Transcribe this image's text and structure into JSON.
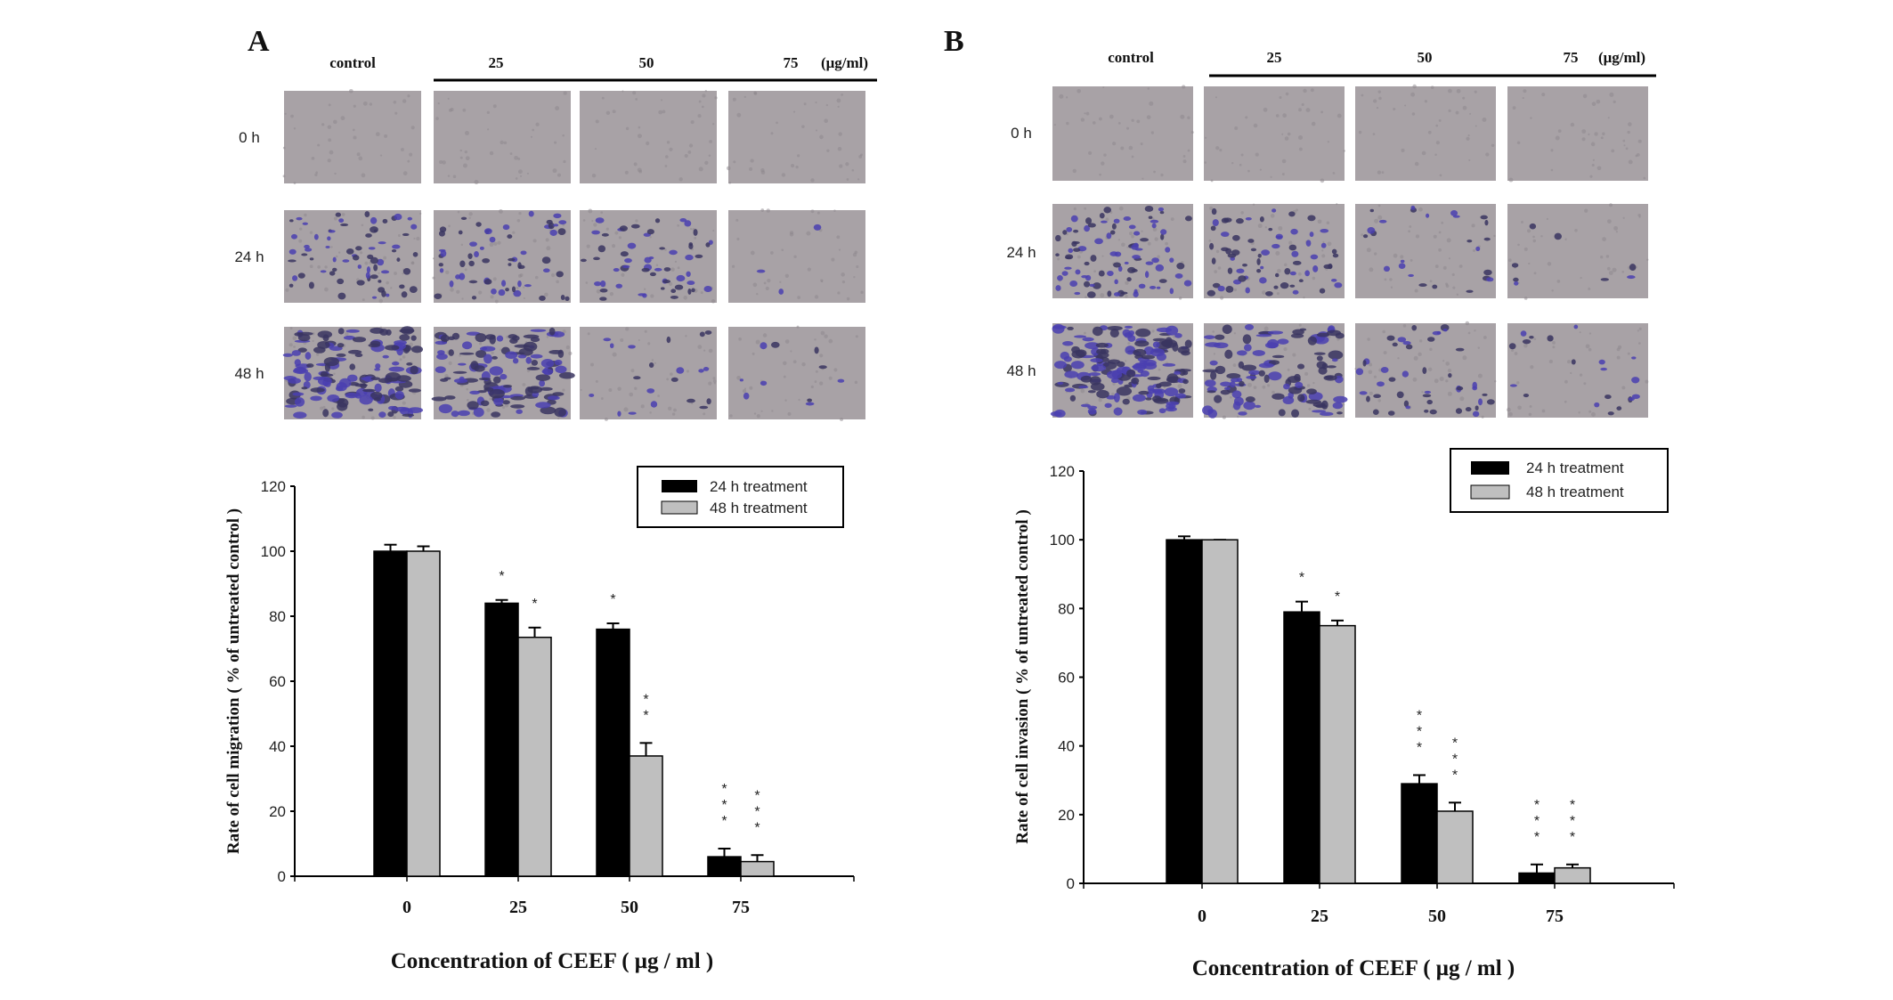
{
  "panels": [
    {
      "letter": "A",
      "columns": [
        "control",
        "25",
        "50",
        "75"
      ],
      "unit": "(μg/ml)",
      "rows": [
        "0  h",
        "24  h",
        "48  h"
      ]
    },
    {
      "letter": "B",
      "columns": [
        "control",
        "25",
        "50",
        "75"
      ],
      "unit": "(μg/ml)",
      "rows": [
        "0  h",
        "24  h",
        "48  h"
      ]
    }
  ],
  "colors": {
    "h24": "#000000",
    "h48": "#bfbfbf",
    "stain": "#4a3fb0",
    "membrane": "#a8a2a6"
  },
  "chart_data": [
    {
      "type": "bar",
      "title": "",
      "xlabel": "Concentration of CEEF ( μg / ml )",
      "ylabel": "Rate of cell migration ( % of untreated control )",
      "categories": [
        "0",
        "25",
        "50",
        "75"
      ],
      "ylim": [
        0,
        120
      ],
      "yticks": [
        "0",
        "20",
        "40",
        "60",
        "80",
        "100",
        "120"
      ],
      "legend_position": "top-right",
      "grid": false,
      "series": [
        {
          "name": "24 h  treatment",
          "values": [
            100,
            84,
            76,
            6
          ],
          "errors": [
            2,
            1,
            1.8,
            2.5
          ],
          "significance": [
            "",
            "*",
            "*",
            "***"
          ]
        },
        {
          "name": "48 h  treatment",
          "values": [
            100,
            73.5,
            37,
            4.5
          ],
          "errors": [
            1.5,
            3,
            4,
            2
          ],
          "significance": [
            "",
            "*",
            "**",
            "***"
          ]
        }
      ]
    },
    {
      "type": "bar",
      "title": "",
      "xlabel": "Concentration of CEEF ( μg / ml )",
      "ylabel": "Rate of cell invasion ( % of untreated control )",
      "categories": [
        "0",
        "25",
        "50",
        "75"
      ],
      "ylim": [
        0,
        120
      ],
      "yticks": [
        "0",
        "20",
        "40",
        "60",
        "80",
        "100",
        "120"
      ],
      "legend_position": "top-right",
      "grid": false,
      "series": [
        {
          "name": "24 h  treatment",
          "values": [
            100,
            79,
            29,
            3
          ],
          "errors": [
            1,
            3,
            2.5,
            2.5
          ],
          "significance": [
            "",
            "*",
            "***",
            "***"
          ]
        },
        {
          "name": "48 h  treatment",
          "values": [
            100,
            75,
            21,
            4.5
          ],
          "errors": [
            0,
            1.5,
            2.5,
            1
          ],
          "significance": [
            "",
            "*",
            "***",
            "***"
          ]
        }
      ]
    }
  ]
}
